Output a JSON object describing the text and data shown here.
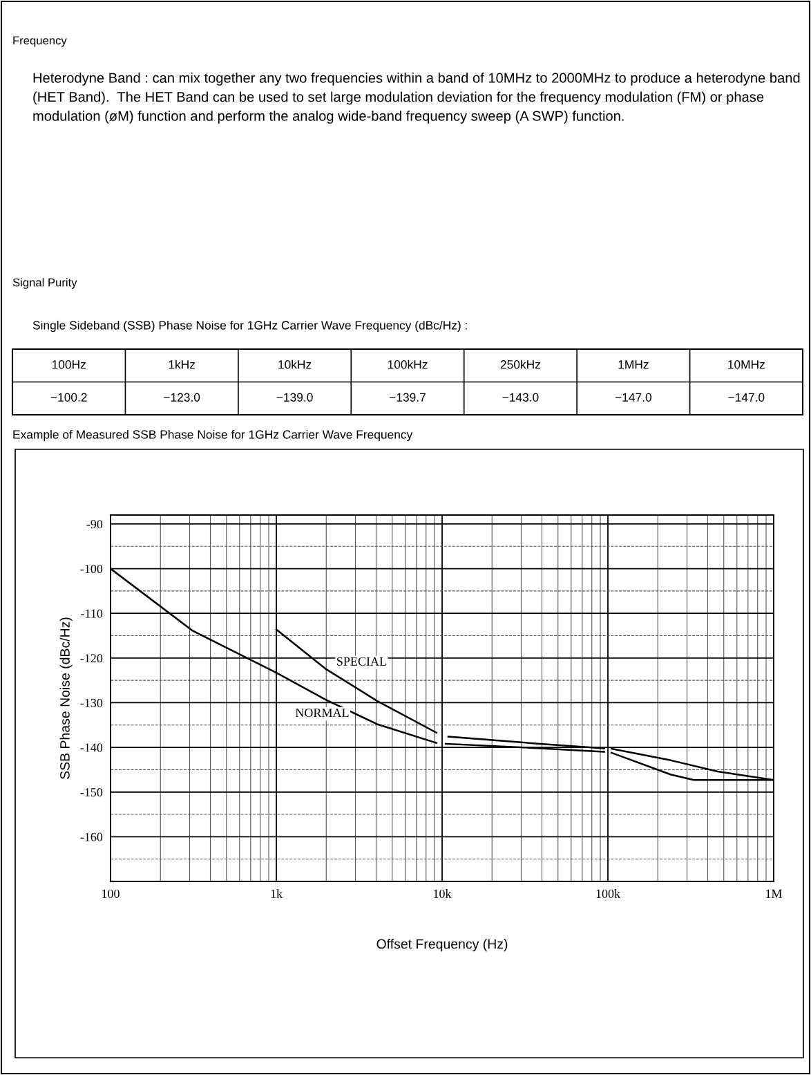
{
  "chart_data": {
    "type": "line",
    "title": "Example of Measured SSB Phase Noise for 1GHz Carrier Wave Frequency",
    "xlabel": "Offset Frequency (Hz)",
    "ylabel": "SSB Phase Noise (dBc/Hz)",
    "series": [
      {
        "name": "NORMAL",
        "color": "#000000",
        "x": [
          100,
          313,
          1000,
          1978,
          4050,
          9230,
          10000,
          10500,
          39000,
          95000,
          100000,
          105000,
          240000,
          460000,
          1000000
        ],
        "values": [
          -100,
          -113.9,
          -123.3,
          -129.3,
          -134.8,
          -139,
          null,
          -139.2,
          -140.2,
          -141,
          null,
          -140.3,
          -142.9,
          -145.4,
          -147.3
        ]
      },
      {
        "name": "SPECIAL",
        "color": "#000000",
        "x": [
          1000,
          1978,
          4050,
          9230,
          10000,
          10900,
          39000,
          95000,
          100000,
          105000,
          240000,
          330000,
          1000000
        ],
        "values": [
          -113.6,
          -122.4,
          -129.6,
          -136.7,
          null,
          -137.6,
          -139.2,
          -140.2,
          null,
          -141.2,
          -146.1,
          -147.3,
          -147.3
        ]
      }
    ],
    "log": "x",
    "xlim": [
      100,
      1000000
    ],
    "xticks": [
      {
        "value": 100,
        "label": "100"
      },
      {
        "value": 1000,
        "label": "1k"
      },
      {
        "value": 10000,
        "label": "10k"
      },
      {
        "value": 100000,
        "label": "100k"
      },
      {
        "value": 1000000,
        "label": "1M"
      }
    ],
    "ylim": [
      -170,
      -88
    ],
    "yticks": [
      -160,
      -150,
      -140,
      -130,
      -120,
      -110,
      -100,
      -90
    ],
    "grid": true,
    "legend": false,
    "line_style": "solid",
    "marker": "none",
    "annotations": [
      "Frequency",
      "Heterodyne Band : can mix together any two frequencies within a band of 10MHz to 2000MHz to produce a heterodyne band (HET Band).  The HET Band can be used to set large modulation deviation for the frequency modulation (FM) or phase modulation (øM) function and perform the analog wide-band frequency sweep (A SWP) function.",
      "Signal Purity",
      "Single Sideband (SSB) Phase Noise for 1GHz Carrier Wave Frequency (dBc/Hz) :",
      "100Hz",
      "1kHz",
      "10kHz",
      "100kHz",
      "250kHz",
      "1MHz",
      "10MHz",
      "−100.2",
      "−123.0",
      "−139.0",
      "−139.7",
      "−143.0",
      "−147.0",
      "−147.0"
    ]
  }
}
